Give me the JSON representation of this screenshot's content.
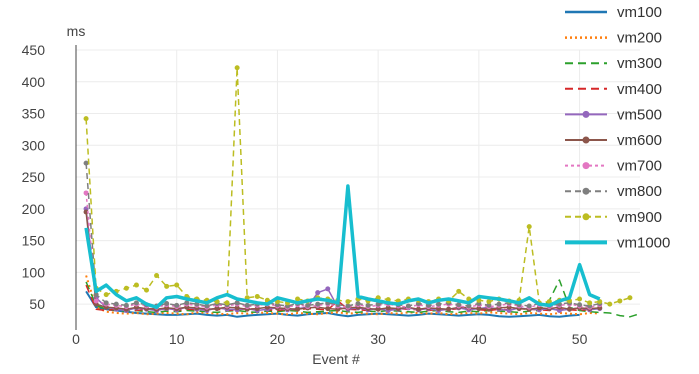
{
  "chart_data": {
    "type": "line",
    "title": "",
    "xlabel": "Event #",
    "ylabel": "ms",
    "xlim": [
      0,
      56
    ],
    "ylim": [
      25,
      450
    ],
    "xticks": [
      0,
      10,
      20,
      30,
      40,
      50
    ],
    "yticks": [
      50,
      100,
      150,
      200,
      250,
      300,
      350,
      400,
      450
    ],
    "grid": true,
    "legend": "right",
    "series": [
      {
        "name": "vm100",
        "color": "#1f77b4",
        "style": "solid",
        "x": [
          1,
          2,
          3,
          4,
          5,
          6,
          7,
          8,
          9,
          10,
          11,
          12,
          13,
          14,
          15,
          16,
          17,
          18,
          19,
          20,
          21,
          22,
          23,
          24,
          25,
          26,
          27,
          28,
          29,
          30,
          31,
          32,
          33,
          34,
          35,
          36,
          37,
          38,
          39,
          40,
          41,
          42,
          43,
          44,
          45,
          46,
          47,
          48,
          49,
          50
        ],
        "y": [
          70,
          45,
          42,
          40,
          38,
          36,
          35,
          34,
          33,
          33,
          34,
          35,
          33,
          32,
          33,
          30,
          32,
          33,
          34,
          35,
          33,
          32,
          34,
          35,
          36,
          33,
          31,
          33,
          34,
          35,
          34,
          33,
          32,
          33,
          35,
          34,
          33,
          32,
          33,
          34,
          33,
          31,
          30,
          31,
          32,
          33,
          31,
          30,
          32,
          33
        ]
      },
      {
        "name": "vm200",
        "color": "#ff7f0e",
        "style": "dotted",
        "x": [
          1,
          2,
          3,
          4,
          5,
          6,
          7,
          8,
          9,
          10,
          11,
          12,
          13,
          14,
          15,
          16,
          17,
          18,
          19,
          20,
          21,
          22,
          23,
          24,
          25,
          26,
          27,
          28,
          29,
          30,
          31,
          32,
          33,
          34,
          35,
          36,
          37,
          38,
          39,
          40,
          41,
          42,
          43,
          44,
          45,
          46,
          47,
          48,
          49,
          50,
          51,
          52
        ],
        "y": [
          95,
          45,
          38,
          36,
          35,
          36,
          34,
          35,
          36,
          35,
          34,
          37,
          36,
          35,
          34,
          36,
          35,
          37,
          36,
          35,
          34,
          36,
          35,
          34,
          36,
          37,
          35,
          36,
          35,
          34,
          36,
          35,
          37,
          36,
          35,
          36,
          34,
          35,
          36,
          35,
          37,
          36,
          35,
          34,
          36,
          35,
          34,
          36,
          35,
          34,
          36,
          35
        ]
      },
      {
        "name": "vm300",
        "color": "#2ca02c",
        "style": "dashed",
        "x": [
          1,
          2,
          3,
          4,
          5,
          6,
          7,
          8,
          9,
          10,
          11,
          12,
          13,
          14,
          15,
          16,
          17,
          18,
          19,
          20,
          21,
          22,
          23,
          24,
          25,
          26,
          27,
          28,
          29,
          30,
          31,
          32,
          33,
          34,
          35,
          36,
          37,
          38,
          39,
          40,
          41,
          42,
          43,
          44,
          45,
          46,
          47,
          48,
          49,
          50,
          51,
          52,
          53,
          54,
          55,
          56
        ],
        "y": [
          85,
          48,
          42,
          40,
          39,
          40,
          38,
          37,
          39,
          38,
          40,
          39,
          38,
          37,
          39,
          40,
          38,
          37,
          39,
          38,
          40,
          39,
          37,
          38,
          39,
          40,
          38,
          37,
          39,
          38,
          40,
          39,
          38,
          37,
          39,
          40,
          38,
          37,
          39,
          38,
          40,
          39,
          38,
          37,
          39,
          40,
          56,
          88,
          45,
          40,
          38,
          37,
          36,
          32,
          30,
          35
        ]
      },
      {
        "name": "vm400",
        "color": "#d62728",
        "style": "dashed",
        "x": [
          1,
          2,
          3,
          4,
          5,
          6,
          7,
          8,
          9,
          10,
          11,
          12,
          13,
          14,
          15,
          16,
          17,
          18,
          19,
          20,
          21,
          22,
          23,
          24,
          25,
          26,
          27,
          28,
          29,
          30,
          31,
          32,
          33,
          34,
          35,
          36,
          37,
          38,
          39,
          40,
          41,
          42,
          43,
          44,
          45,
          46,
          47,
          48,
          49,
          50,
          51
        ],
        "y": [
          80,
          42,
          40,
          42,
          41,
          40,
          42,
          43,
          41,
          40,
          42,
          41,
          43,
          42,
          40,
          41,
          43,
          42,
          41,
          40,
          42,
          41,
          43,
          42,
          41,
          55,
          42,
          41,
          40,
          42,
          41,
          43,
          42,
          41,
          40,
          42,
          41,
          43,
          42,
          41,
          40,
          42,
          41,
          43,
          42,
          41,
          40,
          42,
          41,
          40,
          42
        ]
      },
      {
        "name": "vm500",
        "color": "#9467bd",
        "style": "solid-marker",
        "x": [
          1,
          2,
          3,
          4,
          5,
          6,
          7,
          8,
          9,
          10,
          11,
          12,
          13,
          14,
          15,
          16,
          17,
          18,
          19,
          20,
          21,
          22,
          23,
          24,
          25,
          26,
          27,
          28,
          29,
          30,
          31,
          32,
          33,
          34,
          35,
          36,
          37,
          38,
          39,
          40,
          41,
          42,
          43,
          44,
          45,
          46,
          47,
          48,
          49,
          50,
          51,
          52
        ],
        "y": [
          200,
          60,
          45,
          42,
          40,
          44,
          42,
          40,
          43,
          41,
          45,
          42,
          40,
          44,
          42,
          41,
          43,
          40,
          42,
          44,
          41,
          43,
          45,
          68,
          74,
          45,
          42,
          44,
          41,
          43,
          40,
          42,
          44,
          41,
          43,
          40,
          42,
          44,
          41,
          43,
          45,
          42,
          40,
          44,
          42,
          41,
          43,
          40,
          42,
          44,
          41,
          43
        ]
      },
      {
        "name": "vm600",
        "color": "#8c564b",
        "style": "solid-marker",
        "x": [
          1,
          2,
          3,
          4,
          5,
          6,
          7,
          8,
          9,
          10,
          11,
          12,
          13,
          14,
          15,
          16,
          17,
          18,
          19,
          20,
          21,
          22,
          23,
          24,
          25,
          26,
          27,
          28,
          29,
          30,
          31,
          32,
          33,
          34,
          35,
          36,
          37,
          38,
          39,
          40,
          41,
          42,
          43,
          44,
          45,
          46,
          47,
          48,
          49,
          50,
          51,
          52
        ],
        "y": [
          195,
          50,
          45,
          44,
          42,
          45,
          43,
          42,
          44,
          43,
          45,
          44,
          42,
          43,
          45,
          44,
          42,
          43,
          45,
          44,
          43,
          42,
          44,
          45,
          43,
          42,
          44,
          45,
          43,
          42,
          44,
          43,
          45,
          42,
          44,
          43,
          42,
          45,
          44,
          43,
          42,
          44,
          45,
          43,
          42,
          44,
          43,
          45,
          42,
          44,
          43,
          44
        ]
      },
      {
        "name": "vm700",
        "color": "#e377c2",
        "style": "dotted-marker",
        "x": [
          1,
          2,
          3,
          4,
          5,
          6,
          7,
          8,
          9,
          10,
          11,
          12,
          13,
          14,
          15,
          16,
          17,
          18,
          19,
          20,
          21,
          22,
          23,
          24,
          25,
          26,
          27,
          28,
          29,
          30,
          31,
          32,
          33,
          34,
          35,
          36,
          37,
          38,
          39,
          40,
          41,
          42,
          43,
          44,
          45,
          46,
          47,
          48,
          49,
          50,
          51,
          52
        ],
        "y": [
          225,
          55,
          50,
          48,
          46,
          50,
          47,
          45,
          49,
          46,
          50,
          48,
          45,
          49,
          47,
          50,
          46,
          48,
          50,
          47,
          45,
          49,
          46,
          48,
          50,
          47,
          45,
          49,
          46,
          48,
          50,
          47,
          45,
          49,
          46,
          48,
          50,
          47,
          45,
          49,
          46,
          48,
          50,
          47,
          45,
          49,
          46,
          48,
          50,
          47,
          45,
          49
        ]
      },
      {
        "name": "vm800",
        "color": "#7f7f7f",
        "style": "dashed-marker",
        "x": [
          1,
          2,
          3,
          4,
          5,
          6,
          7,
          8,
          9,
          10,
          11,
          12,
          13,
          14,
          15,
          16,
          17,
          18,
          19,
          20,
          21,
          22,
          23,
          24,
          25,
          26,
          27,
          28,
          29,
          30,
          31,
          32,
          33,
          34,
          35,
          36,
          37,
          38,
          39,
          40,
          41,
          42,
          43,
          44,
          45,
          46,
          47,
          48,
          49,
          50,
          51,
          52
        ],
        "y": [
          272,
          65,
          52,
          50,
          48,
          52,
          49,
          47,
          51,
          48,
          52,
          50,
          47,
          51,
          49,
          52,
          48,
          50,
          52,
          49,
          47,
          51,
          48,
          50,
          52,
          49,
          47,
          51,
          48,
          50,
          52,
          49,
          47,
          51,
          48,
          50,
          52,
          49,
          47,
          51,
          48,
          50,
          52,
          49,
          47,
          51,
          48,
          50,
          52,
          49,
          47,
          51
        ]
      },
      {
        "name": "vm900",
        "color": "#bcbd22",
        "style": "dashed-marker",
        "x": [
          1,
          2,
          3,
          4,
          5,
          6,
          7,
          8,
          9,
          10,
          11,
          12,
          13,
          14,
          15,
          16,
          17,
          18,
          19,
          20,
          21,
          22,
          23,
          24,
          25,
          26,
          27,
          28,
          29,
          30,
          31,
          32,
          33,
          34,
          35,
          36,
          37,
          38,
          39,
          40,
          41,
          42,
          43,
          44,
          45,
          46,
          47,
          48,
          49,
          50,
          51,
          52,
          53,
          54,
          55
        ],
        "y": [
          342,
          75,
          65,
          70,
          75,
          80,
          72,
          95,
          78,
          80,
          62,
          58,
          56,
          54,
          52,
          422,
          60,
          62,
          56,
          54,
          52,
          58,
          55,
          60,
          58,
          56,
          54,
          58,
          55,
          60,
          57,
          55,
          58,
          56,
          54,
          58,
          55,
          70,
          58,
          56,
          54,
          58,
          55,
          56,
          172,
          52,
          54,
          56,
          55,
          58,
          52,
          54,
          50,
          55,
          60
        ]
      },
      {
        "name": "vm1000",
        "color": "#17becf",
        "style": "thick",
        "x": [
          1,
          2,
          3,
          4,
          5,
          6,
          7,
          8,
          9,
          10,
          11,
          12,
          13,
          14,
          15,
          16,
          17,
          18,
          19,
          20,
          21,
          22,
          23,
          24,
          25,
          26,
          27,
          28,
          29,
          30,
          31,
          32,
          33,
          34,
          35,
          36,
          37,
          38,
          39,
          40,
          41,
          42,
          43,
          44,
          45,
          46,
          47,
          48,
          49,
          50,
          51,
          52
        ],
        "y": [
          170,
          70,
          80,
          65,
          55,
          60,
          50,
          45,
          60,
          62,
          58,
          55,
          52,
          60,
          65,
          58,
          55,
          52,
          50,
          60,
          56,
          52,
          55,
          58,
          56,
          52,
          236,
          62,
          58,
          55,
          52,
          50,
          55,
          58,
          52,
          56,
          58,
          55,
          52,
          62,
          60,
          58,
          55,
          52,
          60,
          50,
          48,
          55,
          60,
          112,
          65,
          58
        ]
      }
    ]
  }
}
